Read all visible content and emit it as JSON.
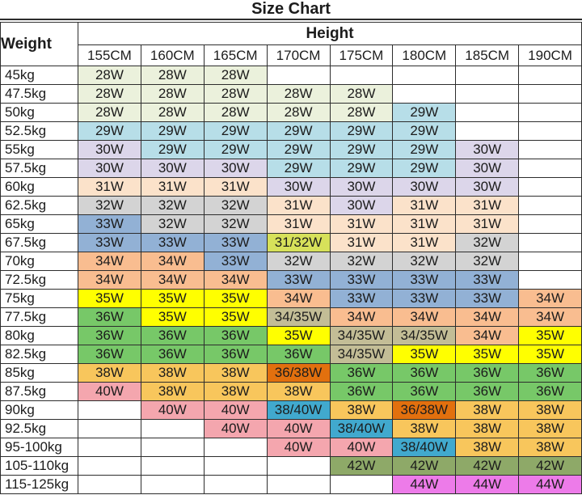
{
  "title": "Size Chart",
  "colors": {
    "w28": "#EBF1DC",
    "w29": "#B7DEE8",
    "w30": "#DCD6EA",
    "w31": "#FBE2CA",
    "w3132": "#D7E15A",
    "w32": "#D3D3D3",
    "w33": "#92B1D5",
    "w34": "#F9BD90",
    "w3435": "#C3BD96",
    "w35": "#FFFF00",
    "w36": "#77C868",
    "w3638": "#E2700E",
    "w38": "#F8C65C",
    "w3840": "#41A9CE",
    "w40": "#F4A6AE",
    "w42": "#8EA968",
    "w44": "#ED7BE9",
    "none": "#FFFFFF"
  },
  "chart_data": {
    "type": "table",
    "title": "Size Chart",
    "corner_header": "Weight",
    "group_header": "Height",
    "columns": [
      "155CM",
      "160CM",
      "165CM",
      "170CM",
      "175CM",
      "180CM",
      "185CM",
      "190CM"
    ],
    "rows": [
      {
        "weight": "45kg",
        "cells": [
          [
            "28W",
            "w28"
          ],
          [
            "28W",
            "w28"
          ],
          [
            "28W",
            "w28"
          ],
          [
            "",
            "none"
          ],
          [
            "",
            "none"
          ],
          [
            "",
            "none"
          ],
          [
            "",
            "none"
          ],
          [
            "",
            "none"
          ]
        ]
      },
      {
        "weight": "47.5kg",
        "cells": [
          [
            "28W",
            "w28"
          ],
          [
            "28W",
            "w28"
          ],
          [
            "28W",
            "w28"
          ],
          [
            "28W",
            "w28"
          ],
          [
            "28W",
            "w28"
          ],
          [
            "",
            "none"
          ],
          [
            "",
            "none"
          ],
          [
            "",
            "none"
          ]
        ]
      },
      {
        "weight": "50kg",
        "cells": [
          [
            "28W",
            "w28"
          ],
          [
            "28W",
            "w28"
          ],
          [
            "28W",
            "w28"
          ],
          [
            "28W",
            "w28"
          ],
          [
            "28W",
            "w28"
          ],
          [
            "29W",
            "w29"
          ],
          [
            "",
            "none"
          ],
          [
            "",
            "none"
          ]
        ]
      },
      {
        "weight": "52.5kg",
        "cells": [
          [
            "29W",
            "w29"
          ],
          [
            "29W",
            "w29"
          ],
          [
            "29W",
            "w29"
          ],
          [
            "29W",
            "w29"
          ],
          [
            "29W",
            "w29"
          ],
          [
            "29W",
            "w29"
          ],
          [
            "",
            "none"
          ],
          [
            "",
            "none"
          ]
        ]
      },
      {
        "weight": "55kg",
        "cells": [
          [
            "30W",
            "w30"
          ],
          [
            "29W",
            "w29"
          ],
          [
            "29W",
            "w29"
          ],
          [
            "29W",
            "w29"
          ],
          [
            "29W",
            "w29"
          ],
          [
            "29W",
            "w29"
          ],
          [
            "30W",
            "w30"
          ],
          [
            "",
            "none"
          ]
        ]
      },
      {
        "weight": "57.5kg",
        "cells": [
          [
            "30W",
            "w30"
          ],
          [
            "30W",
            "w30"
          ],
          [
            "30W",
            "w30"
          ],
          [
            "29W",
            "w29"
          ],
          [
            "29W",
            "w29"
          ],
          [
            "29W",
            "w29"
          ],
          [
            "30W",
            "w30"
          ],
          [
            "",
            "none"
          ]
        ]
      },
      {
        "weight": "60kg",
        "cells": [
          [
            "31W",
            "w31"
          ],
          [
            "31W",
            "w31"
          ],
          [
            "31W",
            "w31"
          ],
          [
            "30W",
            "w30"
          ],
          [
            "30W",
            "w30"
          ],
          [
            "30W",
            "w30"
          ],
          [
            "30W",
            "w30"
          ],
          [
            "",
            "none"
          ]
        ]
      },
      {
        "weight": "62.5kg",
        "cells": [
          [
            "32W",
            "w32"
          ],
          [
            "32W",
            "w32"
          ],
          [
            "32W",
            "w32"
          ],
          [
            "31W",
            "w31"
          ],
          [
            "30W",
            "w30"
          ],
          [
            "31W",
            "w31"
          ],
          [
            "31W",
            "w31"
          ],
          [
            "",
            "none"
          ]
        ]
      },
      {
        "weight": "65kg",
        "cells": [
          [
            "33W",
            "w33"
          ],
          [
            "32W",
            "w32"
          ],
          [
            "32W",
            "w32"
          ],
          [
            "31W",
            "w31"
          ],
          [
            "31W",
            "w31"
          ],
          [
            "31W",
            "w31"
          ],
          [
            "31W",
            "w31"
          ],
          [
            "",
            "none"
          ]
        ]
      },
      {
        "weight": "67.5kg",
        "cells": [
          [
            "33W",
            "w33"
          ],
          [
            "33W",
            "w33"
          ],
          [
            "33W",
            "w33"
          ],
          [
            "31/32W",
            "w3132"
          ],
          [
            "31W",
            "w31"
          ],
          [
            "31W",
            "w31"
          ],
          [
            "32W",
            "w32"
          ],
          [
            "",
            "none"
          ]
        ]
      },
      {
        "weight": "70kg",
        "cells": [
          [
            "34W",
            "w34"
          ],
          [
            "34W",
            "w34"
          ],
          [
            "33W",
            "w33"
          ],
          [
            "32W",
            "w32"
          ],
          [
            "32W",
            "w32"
          ],
          [
            "32W",
            "w32"
          ],
          [
            "32W",
            "w32"
          ],
          [
            "",
            "none"
          ]
        ]
      },
      {
        "weight": "72.5kg",
        "cells": [
          [
            "34W",
            "w34"
          ],
          [
            "34W",
            "w34"
          ],
          [
            "34W",
            "w34"
          ],
          [
            "33W",
            "w33"
          ],
          [
            "33W",
            "w33"
          ],
          [
            "33W",
            "w33"
          ],
          [
            "33W",
            "w33"
          ],
          [
            "",
            "none"
          ]
        ]
      },
      {
        "weight": "75kg",
        "cells": [
          [
            "35W",
            "w35"
          ],
          [
            "35W",
            "w35"
          ],
          [
            "35W",
            "w35"
          ],
          [
            "34W",
            "w34"
          ],
          [
            "33W",
            "w33"
          ],
          [
            "33W",
            "w33"
          ],
          [
            "33W",
            "w33"
          ],
          [
            "34W",
            "w34"
          ]
        ]
      },
      {
        "weight": "77.5kg",
        "cells": [
          [
            "36W",
            "w36"
          ],
          [
            "35W",
            "w35"
          ],
          [
            "35W",
            "w35"
          ],
          [
            "34/35W",
            "w3435"
          ],
          [
            "34W",
            "w34"
          ],
          [
            "34W",
            "w34"
          ],
          [
            "34W",
            "w34"
          ],
          [
            "34W",
            "w34"
          ]
        ]
      },
      {
        "weight": "80kg",
        "cells": [
          [
            "36W",
            "w36"
          ],
          [
            "36W",
            "w36"
          ],
          [
            "36W",
            "w36"
          ],
          [
            "35W",
            "w35"
          ],
          [
            "34/35W",
            "w3435"
          ],
          [
            "34/35W",
            "w3435"
          ],
          [
            "34W",
            "w34"
          ],
          [
            "35W",
            "w35"
          ]
        ]
      },
      {
        "weight": "82.5kg",
        "cells": [
          [
            "36W",
            "w36"
          ],
          [
            "36W",
            "w36"
          ],
          [
            "36W",
            "w36"
          ],
          [
            "36W",
            "w36"
          ],
          [
            "34/35W",
            "w3435"
          ],
          [
            "35W",
            "w35"
          ],
          [
            "35W",
            "w35"
          ],
          [
            "35W",
            "w35"
          ]
        ]
      },
      {
        "weight": "85kg",
        "cells": [
          [
            "38W",
            "w38"
          ],
          [
            "38W",
            "w38"
          ],
          [
            "38W",
            "w38"
          ],
          [
            "36/38W",
            "w3638"
          ],
          [
            "36W",
            "w36"
          ],
          [
            "36W",
            "w36"
          ],
          [
            "36W",
            "w36"
          ],
          [
            "36W",
            "w36"
          ]
        ]
      },
      {
        "weight": "87.5kg",
        "cells": [
          [
            "40W",
            "w40"
          ],
          [
            "38W",
            "w38"
          ],
          [
            "38W",
            "w38"
          ],
          [
            "38W",
            "w38"
          ],
          [
            "36W",
            "w36"
          ],
          [
            "36W",
            "w36"
          ],
          [
            "36W",
            "w36"
          ],
          [
            "36W",
            "w36"
          ]
        ]
      },
      {
        "weight": "90kg",
        "cells": [
          [
            "",
            "none"
          ],
          [
            "40W",
            "w40"
          ],
          [
            "40W",
            "w40"
          ],
          [
            "38/40W",
            "w3840"
          ],
          [
            "38W",
            "w38"
          ],
          [
            "36/38W",
            "w3638"
          ],
          [
            "38W",
            "w38"
          ],
          [
            "38W",
            "w38"
          ]
        ]
      },
      {
        "weight": "92.5kg",
        "cells": [
          [
            "",
            "none"
          ],
          [
            "",
            "none"
          ],
          [
            "40W",
            "w40"
          ],
          [
            "40W",
            "w40"
          ],
          [
            "38/40W",
            "w3840"
          ],
          [
            "38W",
            "w38"
          ],
          [
            "38W",
            "w38"
          ],
          [
            "38W",
            "w38"
          ]
        ]
      },
      {
        "weight": "95-100kg",
        "cells": [
          [
            "",
            "none"
          ],
          [
            "",
            "none"
          ],
          [
            "",
            "none"
          ],
          [
            "40W",
            "w40"
          ],
          [
            "40W",
            "w40"
          ],
          [
            "38/40W",
            "w3840"
          ],
          [
            "38W",
            "w38"
          ],
          [
            "38W",
            "w38"
          ]
        ]
      },
      {
        "weight": "105-110kg",
        "cells": [
          [
            "",
            "none"
          ],
          [
            "",
            "none"
          ],
          [
            "",
            "none"
          ],
          [
            "",
            "none"
          ],
          [
            "42W",
            "w42"
          ],
          [
            "42W",
            "w42"
          ],
          [
            "42W",
            "w42"
          ],
          [
            "42W",
            "w42"
          ]
        ]
      },
      {
        "weight": "115-125kg",
        "cells": [
          [
            "",
            "none"
          ],
          [
            "",
            "none"
          ],
          [
            "",
            "none"
          ],
          [
            "",
            "none"
          ],
          [
            "",
            "none"
          ],
          [
            "44W",
            "w44"
          ],
          [
            "44W",
            "w44"
          ],
          [
            "44W",
            "w44"
          ]
        ]
      }
    ]
  }
}
